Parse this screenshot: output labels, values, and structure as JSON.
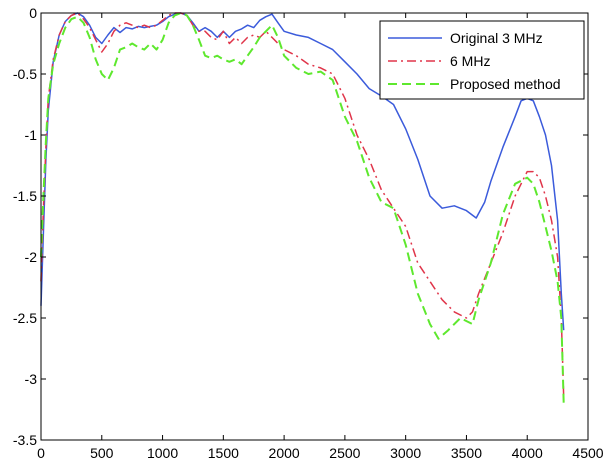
{
  "chart_data": {
    "type": "line",
    "title": "",
    "xlabel": "",
    "ylabel": "",
    "xlim": [
      0,
      4500
    ],
    "ylim": [
      -3.5,
      0
    ],
    "xticks": [
      0,
      500,
      1000,
      1500,
      2000,
      2500,
      3000,
      3500,
      4000,
      4500
    ],
    "xtick_labels": [
      "0",
      "500",
      "1000",
      "1500",
      "2000",
      "2500",
      "3000",
      "3500",
      "4000",
      "4500"
    ],
    "yticks": [
      0,
      -0.5,
      -1,
      -1.5,
      -2,
      -2.5,
      -3,
      -3.5
    ],
    "ytick_labels": [
      "0",
      "-0.5",
      "-1",
      "-1.5",
      "-2",
      "-2.5",
      "-3",
      "-3.5"
    ],
    "grid": false,
    "legend_position": "top-right",
    "series": [
      {
        "name": "Original 3 MHz",
        "color": "#3b5bdb",
        "style": "solid",
        "points": [
          [
            0,
            -2.4
          ],
          [
            20,
            -1.8
          ],
          [
            40,
            -1.2
          ],
          [
            60,
            -0.8
          ],
          [
            100,
            -0.4
          ],
          [
            150,
            -0.18
          ],
          [
            200,
            -0.07
          ],
          [
            250,
            -0.02
          ],
          [
            300,
            0
          ],
          [
            350,
            -0.03
          ],
          [
            400,
            -0.1
          ],
          [
            450,
            -0.2
          ],
          [
            500,
            -0.25
          ],
          [
            550,
            -0.18
          ],
          [
            600,
            -0.12
          ],
          [
            650,
            -0.16
          ],
          [
            700,
            -0.12
          ],
          [
            750,
            -0.13
          ],
          [
            800,
            -0.11
          ],
          [
            850,
            -0.12
          ],
          [
            900,
            -0.11
          ],
          [
            950,
            -0.1
          ],
          [
            1000,
            -0.07
          ],
          [
            1050,
            -0.03
          ],
          [
            1100,
            -0.01
          ],
          [
            1150,
            0
          ],
          [
            1200,
            -0.02
          ],
          [
            1250,
            -0.08
          ],
          [
            1300,
            -0.15
          ],
          [
            1350,
            -0.12
          ],
          [
            1400,
            -0.15
          ],
          [
            1450,
            -0.2
          ],
          [
            1500,
            -0.15
          ],
          [
            1550,
            -0.2
          ],
          [
            1600,
            -0.15
          ],
          [
            1650,
            -0.13
          ],
          [
            1700,
            -0.1
          ],
          [
            1750,
            -0.12
          ],
          [
            1800,
            -0.06
          ],
          [
            1850,
            -0.03
          ],
          [
            1900,
            -0.01
          ],
          [
            1950,
            -0.08
          ],
          [
            2000,
            -0.15
          ],
          [
            2100,
            -0.18
          ],
          [
            2200,
            -0.2
          ],
          [
            2300,
            -0.25
          ],
          [
            2400,
            -0.3
          ],
          [
            2500,
            -0.4
          ],
          [
            2600,
            -0.5
          ],
          [
            2700,
            -0.62
          ],
          [
            2800,
            -0.68
          ],
          [
            2900,
            -0.75
          ],
          [
            3000,
            -0.95
          ],
          [
            3100,
            -1.2
          ],
          [
            3200,
            -1.5
          ],
          [
            3300,
            -1.6
          ],
          [
            3400,
            -1.58
          ],
          [
            3500,
            -1.62
          ],
          [
            3580,
            -1.68
          ],
          [
            3650,
            -1.55
          ],
          [
            3700,
            -1.38
          ],
          [
            3800,
            -1.1
          ],
          [
            3900,
            -0.85
          ],
          [
            3950,
            -0.72
          ],
          [
            4000,
            -0.7
          ],
          [
            4050,
            -0.72
          ],
          [
            4100,
            -0.85
          ],
          [
            4150,
            -1.0
          ],
          [
            4200,
            -1.25
          ],
          [
            4250,
            -1.7
          ],
          [
            4280,
            -2.3
          ],
          [
            4300,
            -2.6
          ]
        ]
      },
      {
        "name": "6 MHz",
        "color": "#e0354a",
        "style": "dashdot",
        "points": [
          [
            0,
            -2.2
          ],
          [
            20,
            -1.6
          ],
          [
            40,
            -1.1
          ],
          [
            60,
            -0.7
          ],
          [
            100,
            -0.38
          ],
          [
            150,
            -0.18
          ],
          [
            200,
            -0.07
          ],
          [
            250,
            -0.02
          ],
          [
            300,
            0
          ],
          [
            350,
            -0.05
          ],
          [
            400,
            -0.12
          ],
          [
            450,
            -0.22
          ],
          [
            500,
            -0.32
          ],
          [
            550,
            -0.25
          ],
          [
            600,
            -0.15
          ],
          [
            650,
            -0.1
          ],
          [
            700,
            -0.08
          ],
          [
            750,
            -0.1
          ],
          [
            800,
            -0.12
          ],
          [
            850,
            -0.1
          ],
          [
            900,
            -0.12
          ],
          [
            950,
            -0.1
          ],
          [
            1000,
            -0.06
          ],
          [
            1050,
            -0.02
          ],
          [
            1100,
            0
          ],
          [
            1150,
            0
          ],
          [
            1200,
            -0.02
          ],
          [
            1250,
            -0.1
          ],
          [
            1300,
            -0.15
          ],
          [
            1350,
            -0.15
          ],
          [
            1400,
            -0.2
          ],
          [
            1450,
            -0.22
          ],
          [
            1500,
            -0.15
          ],
          [
            1550,
            -0.25
          ],
          [
            1600,
            -0.2
          ],
          [
            1650,
            -0.25
          ],
          [
            1700,
            -0.2
          ],
          [
            1750,
            -0.18
          ],
          [
            1800,
            -0.2
          ],
          [
            1850,
            -0.15
          ],
          [
            1900,
            -0.2
          ],
          [
            1950,
            -0.25
          ],
          [
            2000,
            -0.3
          ],
          [
            2100,
            -0.35
          ],
          [
            2200,
            -0.42
          ],
          [
            2300,
            -0.45
          ],
          [
            2400,
            -0.5
          ],
          [
            2500,
            -0.7
          ],
          [
            2600,
            -1.0
          ],
          [
            2700,
            -1.2
          ],
          [
            2800,
            -1.45
          ],
          [
            2900,
            -1.6
          ],
          [
            3000,
            -1.75
          ],
          [
            3100,
            -2.05
          ],
          [
            3200,
            -2.2
          ],
          [
            3300,
            -2.35
          ],
          [
            3400,
            -2.45
          ],
          [
            3500,
            -2.5
          ],
          [
            3550,
            -2.45
          ],
          [
            3600,
            -2.3
          ],
          [
            3700,
            -2.05
          ],
          [
            3800,
            -1.8
          ],
          [
            3900,
            -1.5
          ],
          [
            4000,
            -1.3
          ],
          [
            4050,
            -1.3
          ],
          [
            4100,
            -1.35
          ],
          [
            4150,
            -1.5
          ],
          [
            4200,
            -1.7
          ],
          [
            4250,
            -2.0
          ],
          [
            4280,
            -2.5
          ],
          [
            4300,
            -3.15
          ]
        ]
      },
      {
        "name": "Proposed method",
        "color": "#5ee82e",
        "style": "dashed",
        "points": [
          [
            0,
            -2.0
          ],
          [
            20,
            -1.5
          ],
          [
            40,
            -1.05
          ],
          [
            60,
            -0.7
          ],
          [
            100,
            -0.42
          ],
          [
            150,
            -0.25
          ],
          [
            200,
            -0.12
          ],
          [
            250,
            -0.05
          ],
          [
            300,
            -0.03
          ],
          [
            350,
            -0.08
          ],
          [
            400,
            -0.2
          ],
          [
            450,
            -0.38
          ],
          [
            500,
            -0.5
          ],
          [
            550,
            -0.55
          ],
          [
            600,
            -0.45
          ],
          [
            650,
            -0.3
          ],
          [
            700,
            -0.28
          ],
          [
            750,
            -0.25
          ],
          [
            800,
            -0.28
          ],
          [
            850,
            -0.3
          ],
          [
            900,
            -0.25
          ],
          [
            950,
            -0.3
          ],
          [
            1000,
            -0.22
          ],
          [
            1050,
            -0.08
          ],
          [
            1100,
            -0.02
          ],
          [
            1150,
            0
          ],
          [
            1200,
            -0.02
          ],
          [
            1250,
            -0.1
          ],
          [
            1300,
            -0.22
          ],
          [
            1350,
            -0.35
          ],
          [
            1400,
            -0.37
          ],
          [
            1450,
            -0.35
          ],
          [
            1500,
            -0.38
          ],
          [
            1550,
            -0.4
          ],
          [
            1600,
            -0.38
          ],
          [
            1650,
            -0.42
          ],
          [
            1700,
            -0.35
          ],
          [
            1750,
            -0.28
          ],
          [
            1800,
            -0.2
          ],
          [
            1850,
            -0.15
          ],
          [
            1900,
            -0.1
          ],
          [
            1950,
            -0.2
          ],
          [
            2000,
            -0.35
          ],
          [
            2100,
            -0.45
          ],
          [
            2200,
            -0.5
          ],
          [
            2300,
            -0.48
          ],
          [
            2400,
            -0.55
          ],
          [
            2500,
            -0.85
          ],
          [
            2600,
            -1.05
          ],
          [
            2700,
            -1.35
          ],
          [
            2800,
            -1.55
          ],
          [
            2900,
            -1.6
          ],
          [
            3000,
            -1.9
          ],
          [
            3100,
            -2.3
          ],
          [
            3200,
            -2.55
          ],
          [
            3270,
            -2.67
          ],
          [
            3350,
            -2.6
          ],
          [
            3450,
            -2.5
          ],
          [
            3550,
            -2.55
          ],
          [
            3600,
            -2.35
          ],
          [
            3700,
            -2.05
          ],
          [
            3800,
            -1.65
          ],
          [
            3900,
            -1.4
          ],
          [
            4000,
            -1.35
          ],
          [
            4050,
            -1.4
          ],
          [
            4100,
            -1.55
          ],
          [
            4150,
            -1.75
          ],
          [
            4200,
            -1.95
          ],
          [
            4250,
            -2.2
          ],
          [
            4280,
            -2.5
          ],
          [
            4300,
            -3.2
          ]
        ]
      }
    ]
  }
}
